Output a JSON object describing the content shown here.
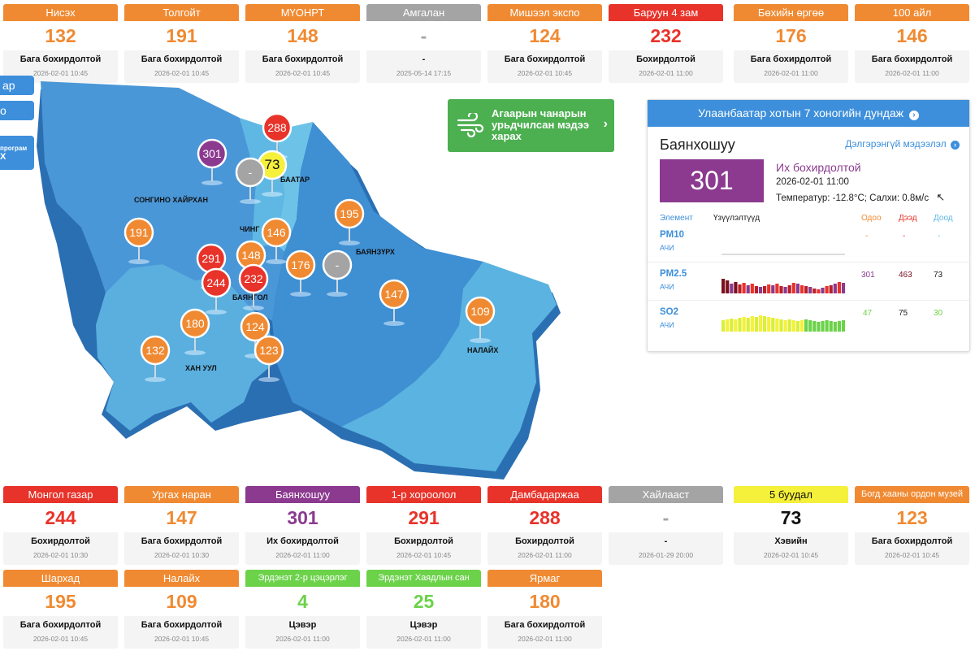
{
  "top_stations": [
    {
      "name": "Нисэх",
      "value": "132",
      "status": "Бага бохирдолтой",
      "time": "2026-02-01 10:45",
      "color": "#f08a32"
    },
    {
      "name": "Толгойт",
      "value": "191",
      "status": "Бага бохирдолтой",
      "time": "2026-02-01 10:45",
      "color": "#f08a32"
    },
    {
      "name": "МҮОНРТ",
      "value": "148",
      "status": "Бага бохирдолтой",
      "time": "2026-02-01 10:45",
      "color": "#f08a32"
    },
    {
      "name": "Амгалан",
      "value": "-",
      "status": "-",
      "time": "2025-05-14 17:15",
      "color": "#a4a4a4"
    },
    {
      "name": "Мишээл экспо",
      "value": "124",
      "status": "Бага бохирдолтой",
      "time": "2026-02-01 10:45",
      "color": "#f08a32"
    },
    {
      "name": "Баруун 4 зам",
      "value": "232",
      "status": "Бохирдолтой",
      "time": "2026-02-01 11:00",
      "color": "#e8332a"
    },
    {
      "name": "Бөхийн өргөө",
      "value": "176",
      "status": "Бага бохирдолтой",
      "time": "2026-02-01 11:00",
      "color": "#f08a32"
    },
    {
      "name": "100 айл",
      "value": "146",
      "status": "Бага бохирдолтой",
      "time": "2026-02-01 11:00",
      "color": "#f08a32"
    }
  ],
  "bottom_stations_row1": [
    {
      "name": "Монгол газар",
      "value": "244",
      "status": "Бохирдолтой",
      "time": "2026-02-01 10:30",
      "color": "#e8332a"
    },
    {
      "name": "Ургах наран",
      "value": "147",
      "status": "Бага бохирдолтой",
      "time": "2026-02-01 10:30",
      "color": "#f08a32"
    },
    {
      "name": "Баянхошуу",
      "value": "301",
      "status": "Их бохирдолтой",
      "time": "2026-02-01 11:00",
      "color": "#8b3a8f"
    },
    {
      "name": "1-р хороолол",
      "value": "291",
      "status": "Бохирдолтой",
      "time": "2026-02-01 10:45",
      "color": "#e8332a"
    },
    {
      "name": "Дамбадаржаа",
      "value": "288",
      "status": "Бохирдолтой",
      "time": "2026-02-01 11:00",
      "color": "#e8332a"
    },
    {
      "name": "Хайлааст",
      "value": "-",
      "status": "-",
      "time": "2026-01-29 20:00",
      "color": "#a4a4a4"
    },
    {
      "name": "5 буудал",
      "value": "73",
      "status": "Хэвийн",
      "time": "2026-02-01 10:45",
      "color": "#f5f03a",
      "text_color": "#111"
    },
    {
      "name": "Богд хааны ордон музей",
      "value": "123",
      "status": "Бага бохирдолтой",
      "time": "2026-02-01 10:45",
      "color": "#f08a32"
    }
  ],
  "bottom_stations_row2": [
    {
      "name": "Шархад",
      "value": "195",
      "status": "Бага бохирдолтой",
      "time": "2026-02-01 10:45",
      "color": "#f08a32"
    },
    {
      "name": "Налайх",
      "value": "109",
      "status": "Бага бохирдолтой",
      "time": "2026-02-01 10:45",
      "color": "#f08a32"
    },
    {
      "name": "Эрдэнэт 2-р цэцэрлэг",
      "value": "4",
      "status": "Цэвэр",
      "time": "2026-02-01 11:00",
      "color": "#6cd24a"
    },
    {
      "name": "Эрдэнэт Хаядлын сан",
      "value": "25",
      "status": "Цэвэр",
      "time": "2026-02-01 11:00",
      "color": "#6cd24a"
    },
    {
      "name": "Ярмаг",
      "value": "180",
      "status": "Бага бохирдолтой",
      "time": "2026-02-01 11:00",
      "color": "#f08a32"
    }
  ],
  "left_edge": {
    "btn1": "ар",
    "btn2": "о",
    "btn3_line1": "програм",
    "btn3_line2": "Х"
  },
  "map": {
    "districts": [
      "СОНГИНО ХАЙРХАН",
      "ЧИНГ",
      "БААТАР",
      "БАЯНЗҮРХ",
      "БАЯНГОЛ",
      "ХАН УУЛ",
      "НАЛАЙХ"
    ],
    "pins": [
      "288",
      "73",
      "-",
      "301",
      "195",
      "191",
      "146",
      "291",
      "148",
      "176",
      "-",
      "244",
      "232",
      "147",
      "109",
      "180",
      "124",
      "132",
      "123"
    ]
  },
  "forecast": {
    "text": "Агаарын чанарын урьдчилсан мэдээ харах",
    "icon": "wind-icon"
  },
  "panel": {
    "title": "Улаанбаатар хотын 7 хоногийн дундаж",
    "station": "Баянхошуу",
    "detail_link": "Дэлгэрэнгүй мэдээлэл",
    "value": "301",
    "level": "Их бохирдолтой",
    "time": "2026-02-01 11:00",
    "weather": "Температур: -12.8°C; Салхи: 0.8м/с",
    "headers": {
      "element": "Элемент",
      "indicators": "Үзүүлэлтүүд",
      "now": "Одоо",
      "max": "Дээд",
      "min": "Доод"
    },
    "rows": [
      {
        "name": "PM10",
        "sub": "АЧИ",
        "now": "-",
        "max": "-",
        "min": "-"
      },
      {
        "name": "PM2.5",
        "sub": "АЧИ",
        "now": "301",
        "max": "463",
        "min": "73"
      },
      {
        "name": "SO2",
        "sub": "АЧИ",
        "now": "47",
        "max": "75",
        "min": "30"
      }
    ]
  }
}
